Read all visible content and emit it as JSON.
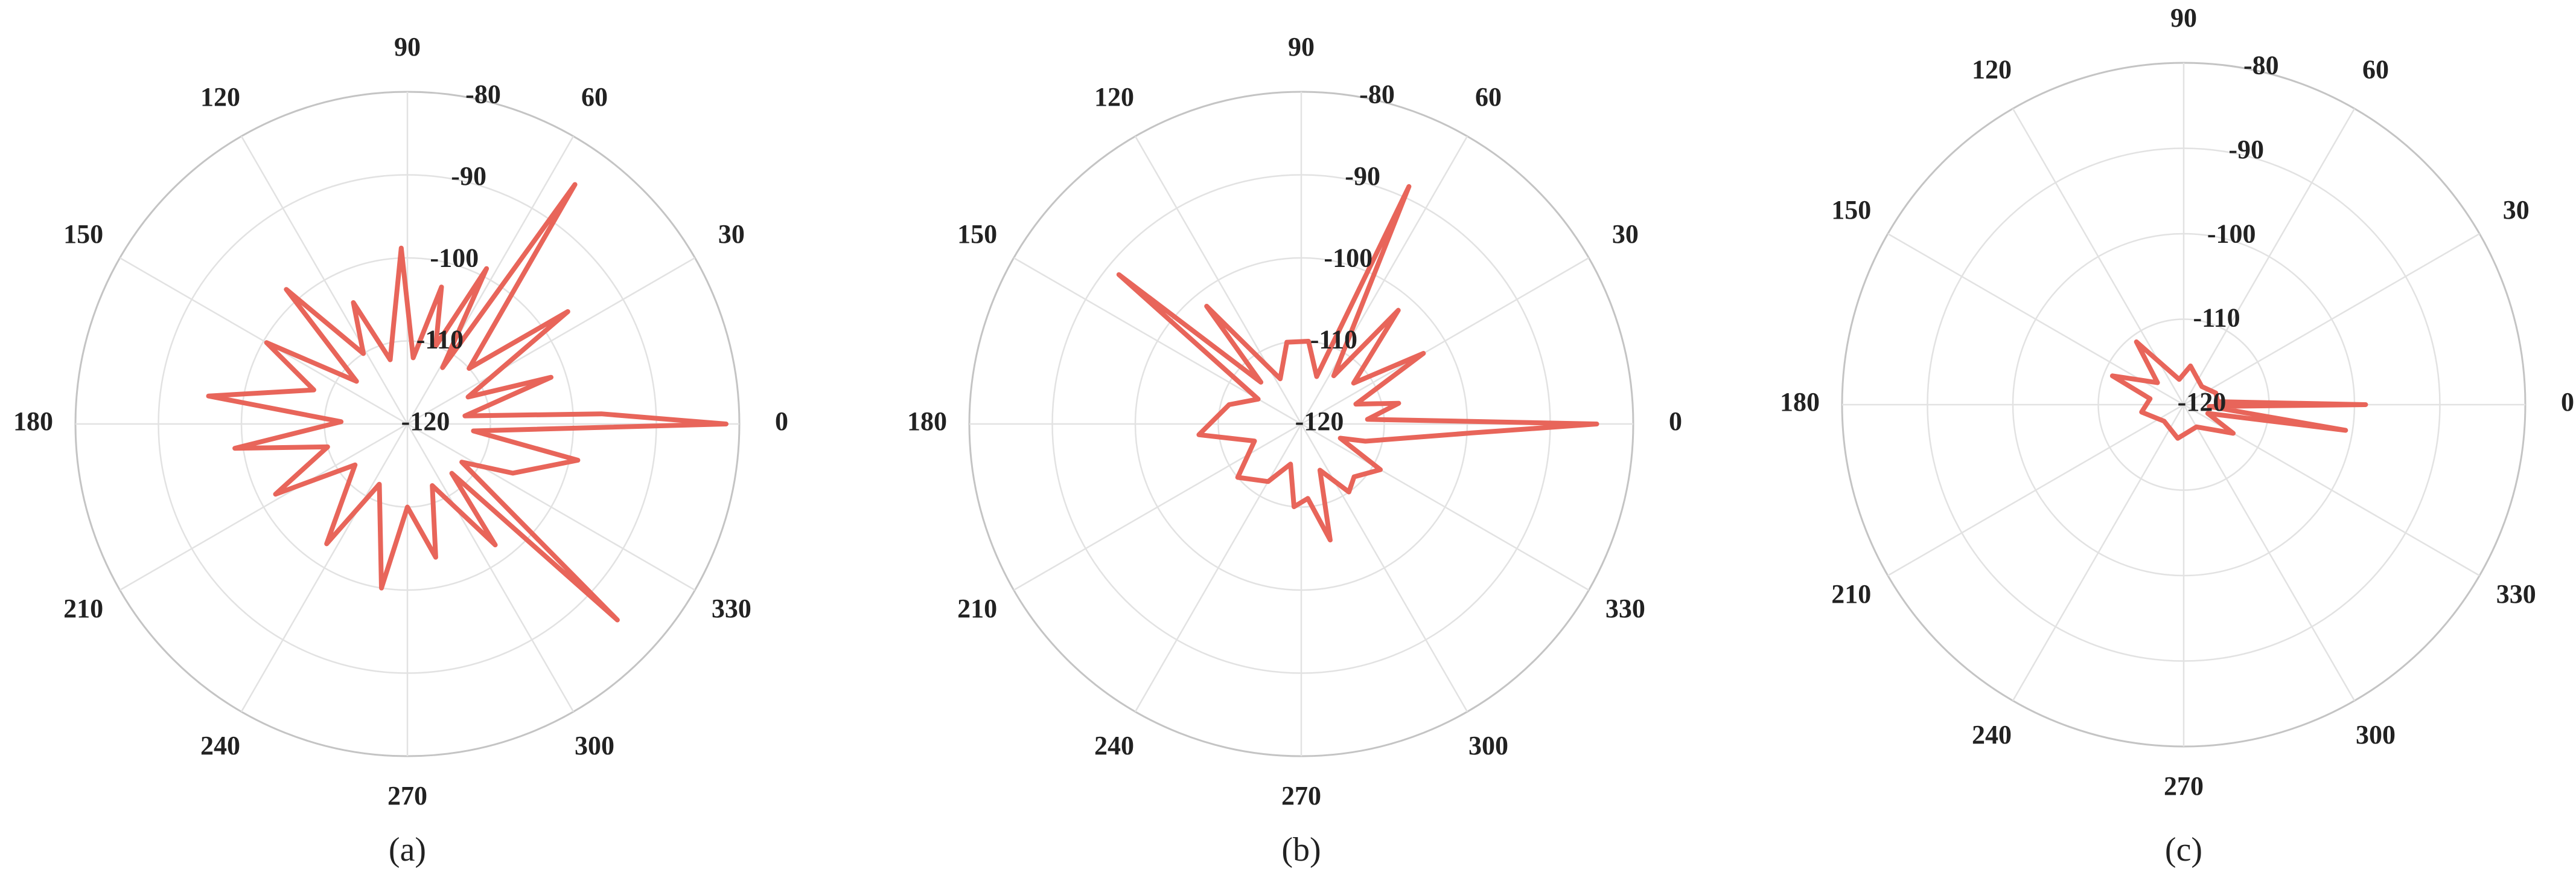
{
  "chart_data": [
    {
      "type": "polar",
      "caption": "(a)",
      "color": "#e8655a",
      "grid": true,
      "rlim": [
        -120,
        -80
      ],
      "rticks": [
        -120,
        -110,
        -100,
        -90,
        -80
      ],
      "thetaticks": [
        0,
        30,
        60,
        90,
        120,
        150,
        180,
        210,
        240,
        270,
        300,
        330
      ],
      "theta": [
        0,
        3,
        8,
        18,
        24,
        35,
        42,
        55,
        58,
        63,
        70,
        76,
        85,
        92,
        98,
        105,
        114,
        122,
        132,
        140,
        150,
        160,
        172,
        178,
        188,
        196,
        208,
        218,
        236,
        245,
        261,
        270,
        282,
        292,
        306,
        312,
        317,
        325,
        335,
        348,
        354
      ],
      "r": [
        -81.6,
        -96.6,
        -113,
        -101.8,
        -112,
        -96.4,
        -110,
        -84.8,
        -112,
        -99,
        -110,
        -103,
        -112,
        -98.8,
        -108,
        -112,
        -104,
        -110,
        -98.2,
        -112,
        -100.4,
        -108,
        -95.8,
        -112,
        -99,
        -110,
        -102,
        -112,
        -102.6,
        -112,
        -100,
        -110,
        -103.6,
        -112,
        -102,
        -112,
        -85.4,
        -112,
        -106,
        -99,
        -112
      ]
    },
    {
      "type": "polar",
      "caption": "(b)",
      "color": "#e8655a",
      "grid": true,
      "rlim": [
        -120,
        -80
      ],
      "rticks": [
        -120,
        -110,
        -100,
        -90,
        -80
      ],
      "thetaticks": [
        0,
        30,
        60,
        90,
        120,
        150,
        180,
        210,
        240,
        270,
        300,
        330
      ],
      "theta": [
        0,
        4,
        12,
        20,
        30,
        38,
        49.5,
        56,
        65.6,
        72,
        85,
        100,
        115,
        128.8,
        134,
        140.7,
        150,
        165,
        186,
        200,
        220,
        240,
        255,
        265,
        275,
        284,
        292,
        305,
        315,
        330,
        340,
        345,
        357
      ],
      "r": [
        -84.4,
        -112,
        -108,
        -113,
        -103,
        -112,
        -102,
        -113,
        -88.6,
        -114,
        -110,
        -110,
        -114,
        -101.8,
        -113,
        -91.6,
        -114,
        -111,
        -107.6,
        -114,
        -110,
        -112,
        -115,
        -110,
        -111,
        -105.6,
        -114,
        -110,
        -111,
        -109,
        -115,
        -112,
        -99.4
      ]
    },
    {
      "type": "polar",
      "caption": "(c)",
      "color": "#e8655a",
      "grid": true,
      "rlim": [
        -120,
        -80
      ],
      "rticks": [
        -120,
        -110,
        -100,
        -90,
        -80
      ],
      "thetaticks": [
        0,
        30,
        60,
        90,
        120,
        150,
        180,
        210,
        240,
        270,
        300,
        330
      ],
      "theta": [
        0,
        5,
        20,
        45,
        80,
        100,
        127,
        140,
        158,
        170,
        190,
        220,
        260,
        300,
        330,
        340,
        351,
        356
      ],
      "r": [
        -98.7,
        -116,
        -116,
        -117,
        -115.4,
        -117,
        -110.8,
        -116,
        -111,
        -116,
        -115,
        -117,
        -116,
        -117,
        -113.3,
        -117,
        -100.8,
        -117
      ]
    }
  ]
}
